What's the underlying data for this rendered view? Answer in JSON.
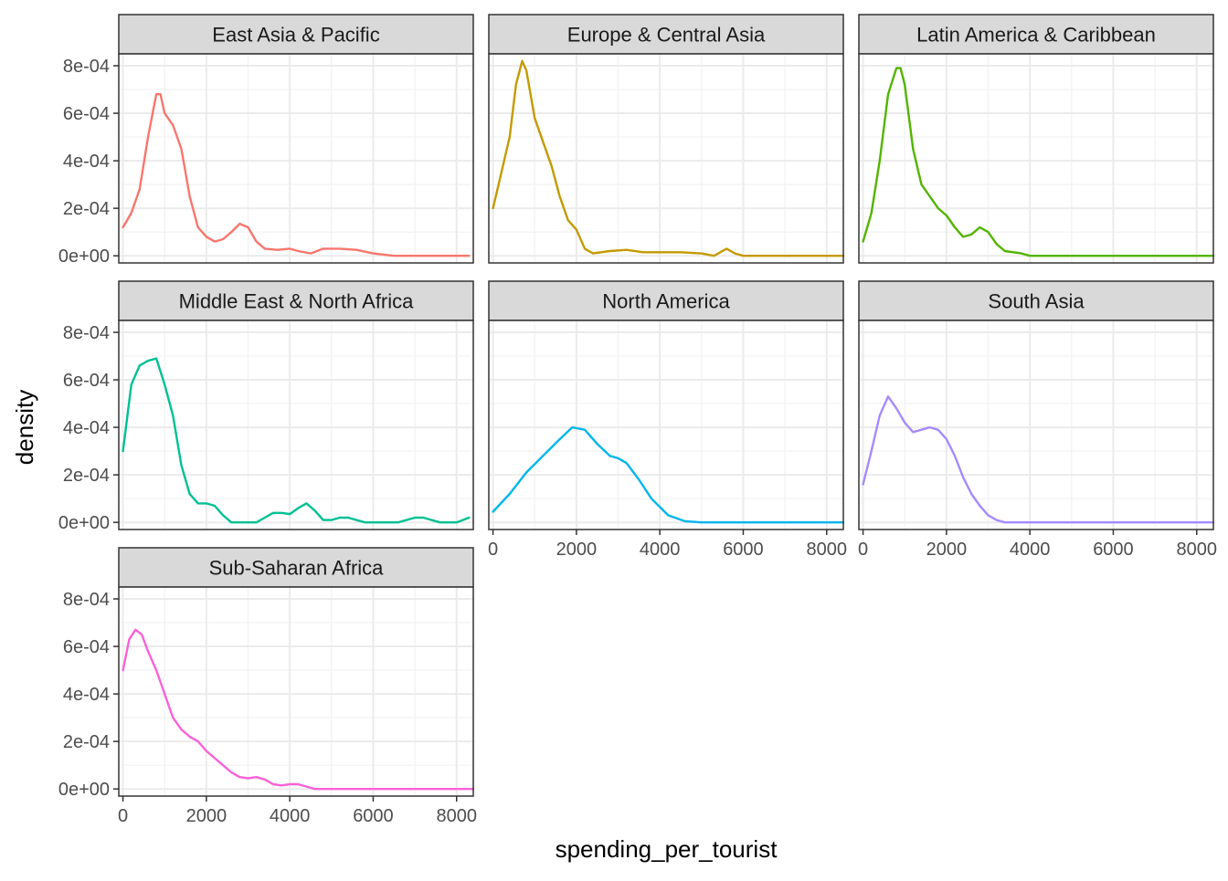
{
  "chart_data": {
    "type": "line",
    "chart_kind": "faceted density plot",
    "xlabel": "spending_per_tourist",
    "ylabel": "density",
    "xlim": [
      -100,
      8400
    ],
    "ylim": [
      -3e-05,
      0.00085
    ],
    "x_ticks": [
      0,
      2000,
      4000,
      6000,
      8000
    ],
    "y_ticks": [
      {
        "value": 0,
        "label": "0e+00"
      },
      {
        "value": 0.0002,
        "label": "2e-04"
      },
      {
        "value": 0.0004,
        "label": "4e-04"
      },
      {
        "value": 0.0006,
        "label": "6e-04"
      },
      {
        "value": 0.0008,
        "label": "8e-04"
      }
    ],
    "grid": true,
    "legend": "none",
    "facets": [
      {
        "name": "East Asia & Pacific",
        "color": "#F8766D",
        "points": [
          [
            0,
            0.00012
          ],
          [
            200,
            0.00018
          ],
          [
            400,
            0.00028
          ],
          [
            600,
            0.0005
          ],
          [
            800,
            0.00068
          ],
          [
            900,
            0.00068
          ],
          [
            1000,
            0.0006
          ],
          [
            1200,
            0.00055
          ],
          [
            1400,
            0.00045
          ],
          [
            1600,
            0.00025
          ],
          [
            1800,
            0.00012
          ],
          [
            2000,
            8e-05
          ],
          [
            2200,
            6e-05
          ],
          [
            2400,
            7e-05
          ],
          [
            2600,
            0.0001
          ],
          [
            2800,
            0.000135
          ],
          [
            3000,
            0.00012
          ],
          [
            3200,
            6e-05
          ],
          [
            3400,
            3e-05
          ],
          [
            3700,
            2.5e-05
          ],
          [
            4000,
            3e-05
          ],
          [
            4200,
            2e-05
          ],
          [
            4500,
            1e-05
          ],
          [
            4800,
            3e-05
          ],
          [
            5200,
            3e-05
          ],
          [
            5600,
            2.5e-05
          ],
          [
            6000,
            1e-05
          ],
          [
            6500,
            0.0
          ],
          [
            7000,
            0.0
          ],
          [
            7500,
            0.0
          ],
          [
            8000,
            0.0
          ],
          [
            8300,
            0.0
          ]
        ]
      },
      {
        "name": "Europe & Central Asia",
        "color": "#C49A00",
        "points": [
          [
            0,
            0.0002
          ],
          [
            200,
            0.00035
          ],
          [
            400,
            0.0005
          ],
          [
            550,
            0.00072
          ],
          [
            700,
            0.00082
          ],
          [
            800,
            0.00078
          ],
          [
            1000,
            0.00058
          ],
          [
            1200,
            0.00048
          ],
          [
            1400,
            0.00038
          ],
          [
            1600,
            0.00025
          ],
          [
            1800,
            0.00015
          ],
          [
            2000,
            0.00011
          ],
          [
            2200,
            3e-05
          ],
          [
            2400,
            1e-05
          ],
          [
            2800,
            2e-05
          ],
          [
            3200,
            2.5e-05
          ],
          [
            3600,
            1.5e-05
          ],
          [
            4000,
            1.5e-05
          ],
          [
            4500,
            1.5e-05
          ],
          [
            5000,
            1e-05
          ],
          [
            5300,
            0.0
          ],
          [
            5600,
            3e-05
          ],
          [
            5800,
            1e-05
          ],
          [
            6000,
            0.0
          ],
          [
            6500,
            0.0
          ],
          [
            7000,
            0.0
          ],
          [
            8000,
            0.0
          ],
          [
            8400,
            0.0
          ]
        ]
      },
      {
        "name": "Latin America & Caribbean",
        "color": "#53B400",
        "points": [
          [
            0,
            6e-05
          ],
          [
            200,
            0.00018
          ],
          [
            400,
            0.0004
          ],
          [
            600,
            0.00068
          ],
          [
            800,
            0.00079
          ],
          [
            900,
            0.00079
          ],
          [
            1000,
            0.00072
          ],
          [
            1200,
            0.00045
          ],
          [
            1400,
            0.0003
          ],
          [
            1600,
            0.00025
          ],
          [
            1800,
            0.0002
          ],
          [
            2000,
            0.00017
          ],
          [
            2200,
            0.00012
          ],
          [
            2400,
            8e-05
          ],
          [
            2600,
            9e-05
          ],
          [
            2800,
            0.00012
          ],
          [
            3000,
            0.0001
          ],
          [
            3200,
            5e-05
          ],
          [
            3400,
            2e-05
          ],
          [
            3800,
            1e-05
          ],
          [
            4000,
            0.0
          ],
          [
            4500,
            0.0
          ],
          [
            5000,
            0.0
          ],
          [
            6000,
            0.0
          ],
          [
            7000,
            0.0
          ],
          [
            8000,
            0.0
          ],
          [
            8400,
            0.0
          ]
        ]
      },
      {
        "name": "Middle East & North Africa",
        "color": "#00C094",
        "points": [
          [
            0,
            0.0003
          ],
          [
            200,
            0.00058
          ],
          [
            400,
            0.00066
          ],
          [
            600,
            0.00068
          ],
          [
            800,
            0.00069
          ],
          [
            1000,
            0.00058
          ],
          [
            1200,
            0.00045
          ],
          [
            1400,
            0.00024
          ],
          [
            1600,
            0.00012
          ],
          [
            1800,
            8e-05
          ],
          [
            2000,
            8e-05
          ],
          [
            2200,
            7e-05
          ],
          [
            2400,
            3e-05
          ],
          [
            2600,
            0.0
          ],
          [
            2800,
            0.0
          ],
          [
            3200,
            0.0
          ],
          [
            3400,
            2e-05
          ],
          [
            3600,
            4e-05
          ],
          [
            3800,
            4e-05
          ],
          [
            4000,
            3.5e-05
          ],
          [
            4200,
            6e-05
          ],
          [
            4400,
            8e-05
          ],
          [
            4600,
            5e-05
          ],
          [
            4800,
            1e-05
          ],
          [
            5000,
            1e-05
          ],
          [
            5200,
            2e-05
          ],
          [
            5400,
            2e-05
          ],
          [
            5800,
            0.0
          ],
          [
            6200,
            0.0
          ],
          [
            6600,
            0.0
          ],
          [
            7000,
            2e-05
          ],
          [
            7200,
            2e-05
          ],
          [
            7600,
            0.0
          ],
          [
            8000,
            0.0
          ],
          [
            8300,
            2e-05
          ]
        ]
      },
      {
        "name": "North America",
        "color": "#00B6EB",
        "points": [
          [
            0,
            4.5e-05
          ],
          [
            400,
            0.00012
          ],
          [
            800,
            0.00021
          ],
          [
            1200,
            0.00028
          ],
          [
            1600,
            0.00035
          ],
          [
            1900,
            0.0004
          ],
          [
            2200,
            0.00039
          ],
          [
            2500,
            0.00033
          ],
          [
            2800,
            0.00028
          ],
          [
            3000,
            0.00027
          ],
          [
            3200,
            0.00025
          ],
          [
            3500,
            0.00018
          ],
          [
            3800,
            0.0001
          ],
          [
            4200,
            3e-05
          ],
          [
            4600,
            5e-06
          ],
          [
            5000,
            0.0
          ],
          [
            6000,
            0.0
          ],
          [
            7000,
            0.0
          ],
          [
            8000,
            0.0
          ],
          [
            8400,
            0.0
          ]
        ]
      },
      {
        "name": "South Asia",
        "color": "#A58AFF",
        "points": [
          [
            0,
            0.00016
          ],
          [
            200,
            0.0003
          ],
          [
            400,
            0.00045
          ],
          [
            600,
            0.00053
          ],
          [
            800,
            0.00048
          ],
          [
            1000,
            0.00042
          ],
          [
            1200,
            0.00038
          ],
          [
            1400,
            0.00039
          ],
          [
            1600,
            0.0004
          ],
          [
            1800,
            0.00039
          ],
          [
            2000,
            0.00035
          ],
          [
            2200,
            0.00028
          ],
          [
            2400,
            0.00019
          ],
          [
            2600,
            0.00012
          ],
          [
            2800,
            7e-05
          ],
          [
            3000,
            3e-05
          ],
          [
            3200,
            1e-05
          ],
          [
            3400,
            0.0
          ],
          [
            4000,
            0.0
          ],
          [
            5000,
            0.0
          ],
          [
            6000,
            0.0
          ],
          [
            7000,
            0.0
          ],
          [
            8000,
            0.0
          ],
          [
            8400,
            0.0
          ]
        ]
      },
      {
        "name": "Sub-Saharan Africa",
        "color": "#FB61D7",
        "points": [
          [
            0,
            0.0005
          ],
          [
            150,
            0.00063
          ],
          [
            300,
            0.00067
          ],
          [
            450,
            0.00065
          ],
          [
            600,
            0.00058
          ],
          [
            800,
            0.0005
          ],
          [
            1000,
            0.0004
          ],
          [
            1200,
            0.0003
          ],
          [
            1400,
            0.00025
          ],
          [
            1600,
            0.00022
          ],
          [
            1800,
            0.0002
          ],
          [
            2000,
            0.00016
          ],
          [
            2200,
            0.00013
          ],
          [
            2400,
            0.0001
          ],
          [
            2600,
            7e-05
          ],
          [
            2800,
            5e-05
          ],
          [
            3000,
            4.5e-05
          ],
          [
            3200,
            5e-05
          ],
          [
            3400,
            4e-05
          ],
          [
            3600,
            2e-05
          ],
          [
            3800,
            1.5e-05
          ],
          [
            4000,
            2e-05
          ],
          [
            4200,
            2e-05
          ],
          [
            4400,
            1e-05
          ],
          [
            4600,
            0.0
          ],
          [
            5000,
            0.0
          ],
          [
            6000,
            0.0
          ],
          [
            7000,
            0.0
          ],
          [
            8000,
            0.0
          ],
          [
            8400,
            0.0
          ]
        ]
      }
    ]
  }
}
